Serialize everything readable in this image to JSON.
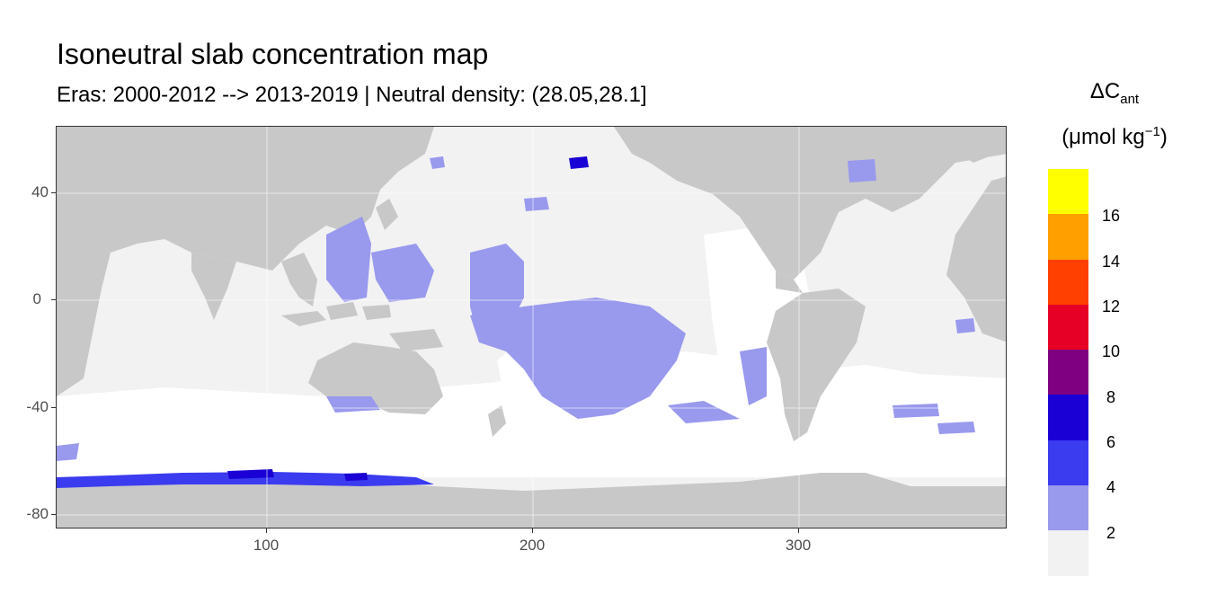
{
  "title": "Isoneutral slab concentration map",
  "subtitle": "Eras: 2000-2012 --> 2013-2019 | Neutral density: (28.05,28.1]",
  "legend": {
    "title_main": "ΔC",
    "title_sub": "ant",
    "unit_prefix": "(μmol kg",
    "unit_sup": "−1",
    "unit_suffix": ")",
    "labels": [
      "16",
      "14",
      "12",
      "10",
      "8",
      "6",
      "4",
      "2"
    ],
    "colors_top_to_bottom": [
      "#ffff00",
      "#ff9f00",
      "#ff4000",
      "#e60026",
      "#7f0080",
      "#1a00d4",
      "#3b3bf0",
      "#9999ee",
      "#f2f2f2"
    ]
  },
  "axes": {
    "y_ticks": [
      "40",
      "0",
      "-40",
      "-80"
    ],
    "x_ticks": [
      "100",
      "200",
      "300"
    ]
  },
  "colors": {
    "land": "#c8c8c8",
    "ocean_zero": "#f2f2f2",
    "low_band": "#9999ee",
    "mid_band": "#3b3bf0",
    "high_band": "#1a00d4",
    "no_data": "#ffffff"
  }
}
